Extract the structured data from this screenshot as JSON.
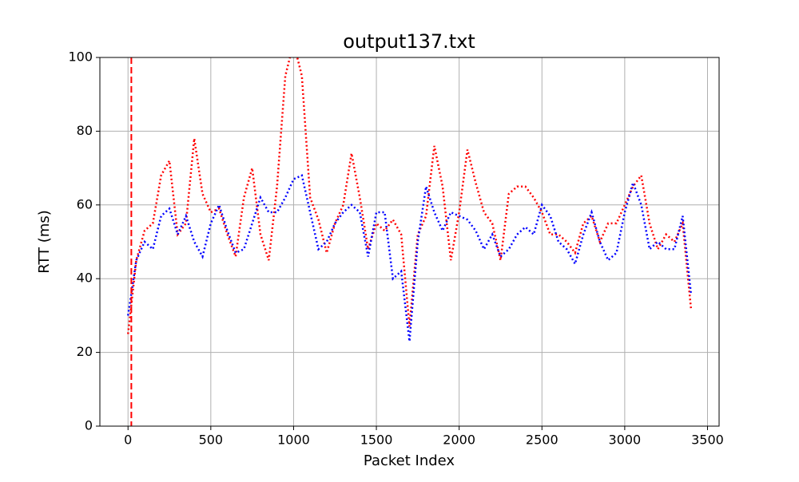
{
  "chart_data": {
    "type": "line",
    "title": "output137.txt",
    "xlabel": "Packet Index",
    "ylabel": "RTT (ms)",
    "x": [
      0,
      50,
      100,
      150,
      200,
      250,
      300,
      350,
      400,
      450,
      500,
      550,
      600,
      650,
      700,
      750,
      800,
      850,
      900,
      950,
      1000,
      1050,
      1100,
      1150,
      1200,
      1250,
      1300,
      1350,
      1400,
      1450,
      1500,
      1550,
      1600,
      1650,
      1700,
      1750,
      1800,
      1850,
      1900,
      1950,
      2000,
      2050,
      2100,
      2150,
      2200,
      2250,
      2300,
      2350,
      2400,
      2450,
      2500,
      2550,
      2600,
      2650,
      2700,
      2750,
      2800,
      2850,
      2900,
      2950,
      3000,
      3050,
      3100,
      3150,
      3200,
      3250,
      3300,
      3350,
      3400
    ],
    "series": [
      {
        "color": "#ff0000",
        "values": [
          25,
          45,
          53,
          55,
          68,
          72,
          52,
          55,
          78,
          63,
          58,
          59,
          52,
          46,
          62,
          70,
          52,
          45,
          65,
          95,
          104,
          95,
          62,
          56,
          47,
          55,
          60,
          74,
          62,
          48,
          55,
          53,
          56,
          52,
          27,
          52,
          57,
          76,
          65,
          45,
          58,
          75,
          66,
          58,
          55,
          45,
          63,
          65,
          65,
          62,
          58,
          52,
          52,
          50,
          47,
          55,
          57,
          50,
          55,
          55,
          60,
          65,
          68,
          55,
          48,
          52,
          50,
          55,
          32
        ]
      },
      {
        "color": "#0000ff",
        "values": [
          30,
          45,
          50,
          48,
          57,
          59,
          52,
          57,
          50,
          46,
          55,
          60,
          53,
          47,
          48,
          55,
          62,
          58,
          58,
          62,
          67,
          68,
          58,
          48,
          50,
          55,
          58,
          60,
          58,
          46,
          58,
          58,
          40,
          42,
          23,
          50,
          65,
          58,
          53,
          58,
          57,
          56,
          53,
          48,
          52,
          46,
          48,
          52,
          54,
          52,
          60,
          57,
          50,
          48,
          44,
          52,
          58,
          50,
          45,
          47,
          58,
          66,
          60,
          48,
          50,
          48,
          48,
          57,
          36
        ]
      }
    ],
    "vline": {
      "x": 20,
      "color": "#ff0000"
    },
    "xlim": [
      -170,
      3570
    ],
    "ylim": [
      0,
      100
    ],
    "xticks": [
      0,
      500,
      1000,
      1500,
      2000,
      2500,
      3000,
      3500
    ],
    "yticks": [
      0,
      20,
      40,
      60,
      80,
      100
    ],
    "grid": true
  }
}
